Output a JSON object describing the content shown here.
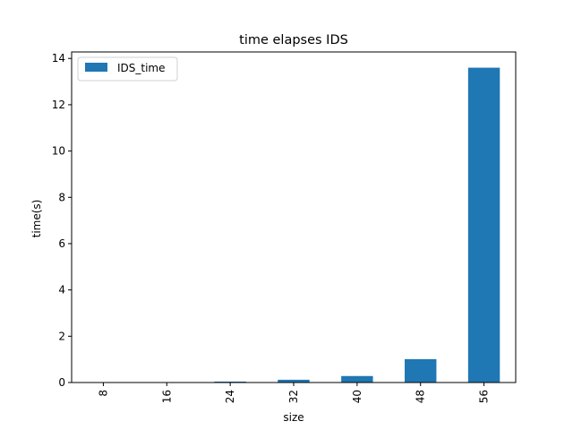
{
  "chart_data": {
    "type": "bar",
    "title": "time elapses IDS",
    "xlabel": "size",
    "ylabel": "time(s)",
    "categories": [
      "8",
      "16",
      "24",
      "32",
      "40",
      "48",
      "56"
    ],
    "series": [
      {
        "name": "IDS_time",
        "values": [
          0.001,
          0.005,
          0.04,
          0.12,
          0.28,
          1.01,
          13.6
        ],
        "color": "#1f77b4"
      }
    ],
    "ylim": [
      0,
      14.28
    ],
    "yticks": [
      0,
      2,
      4,
      6,
      8,
      10,
      12,
      14
    ],
    "grid": false,
    "legend_position": "top-left",
    "xtick_rotation": "vertical"
  }
}
